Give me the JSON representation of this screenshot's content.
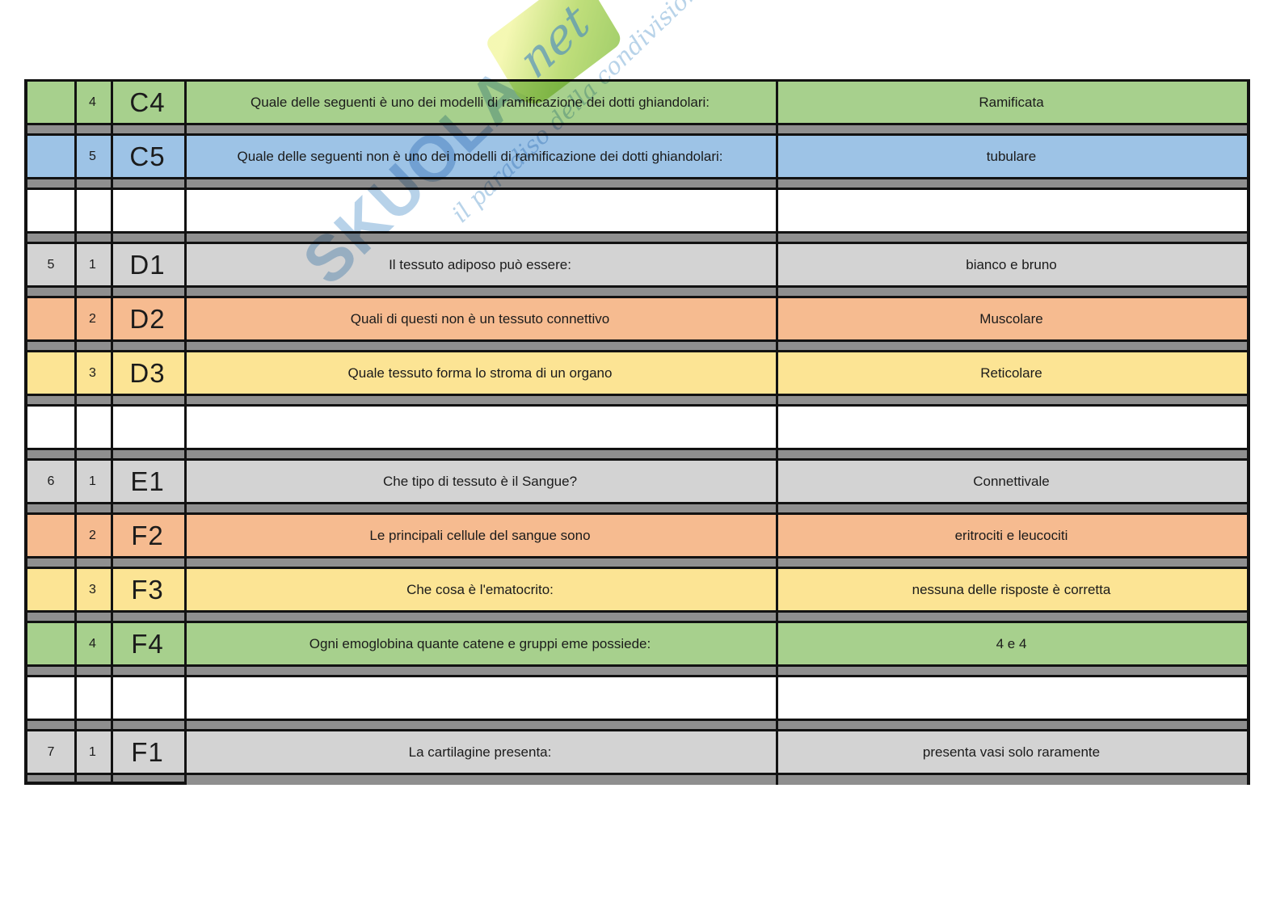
{
  "watermark": {
    "brand": "SKUOLA",
    "brand_suffix": "net",
    "slogan": "il paradiso della condivisione"
  },
  "table": {
    "columns": [
      "group",
      "number",
      "code",
      "question",
      "answer"
    ],
    "colors": {
      "green": "#a7d08d",
      "blue": "#9dc3e6",
      "gray": "#d3d3d3",
      "orange": "#f6bb90",
      "yellow": "#fce494",
      "white": "#ffffff"
    },
    "gap_color": "#8f8f8f",
    "border_color": "#121212",
    "rows": [
      {
        "group": "",
        "number": "4",
        "code": "C4",
        "question": "Quale delle seguenti è uno dei modelli di ramificazione dei dotti ghiandolari:",
        "answer": "Ramificata",
        "color": "green"
      },
      {
        "group": "",
        "number": "5",
        "code": "C5",
        "question": "Quale delle seguenti non è uno dei modelli di ramificazione dei dotti ghiandolari:",
        "answer": "tubulare",
        "color": "blue"
      },
      {
        "group": "",
        "number": "",
        "code": "",
        "question": "",
        "answer": "",
        "color": "white"
      },
      {
        "group": "5",
        "number": "1",
        "code": "D1",
        "question": "Il tessuto adiposo può essere:",
        "answer": "bianco e bruno",
        "color": "gray"
      },
      {
        "group": "",
        "number": "2",
        "code": "D2",
        "question": "Quali di questi non è un tessuto connettivo",
        "answer": "Muscolare",
        "color": "orange"
      },
      {
        "group": "",
        "number": "3",
        "code": "D3",
        "question": "Quale tessuto forma lo stroma di un organo",
        "answer": "Reticolare",
        "color": "yellow"
      },
      {
        "group": "",
        "number": "",
        "code": "",
        "question": "",
        "answer": "",
        "color": "white"
      },
      {
        "group": "6",
        "number": "1",
        "code": "E1",
        "question": "Che tipo di tessuto è il Sangue?",
        "answer": "Connettivale",
        "color": "gray"
      },
      {
        "group": "",
        "number": "2",
        "code": "F2",
        "question": "Le principali cellule del sangue sono",
        "answer": "eritrociti e leucociti",
        "color": "orange"
      },
      {
        "group": "",
        "number": "3",
        "code": "F3",
        "question": "Che cosa è l'ematocrito:",
        "answer": "nessuna delle risposte è corretta",
        "color": "yellow"
      },
      {
        "group": "",
        "number": "4",
        "code": "F4",
        "question": "Ogni emoglobina quante catene e gruppi eme possiede:",
        "answer": "4 e 4",
        "color": "green"
      },
      {
        "group": "",
        "number": "",
        "code": "",
        "question": "",
        "answer": "",
        "color": "white"
      },
      {
        "group": "7",
        "number": "1",
        "code": "F1",
        "question": "La cartilagine presenta:",
        "answer": "presenta vasi solo raramente",
        "color": "gray"
      }
    ]
  }
}
